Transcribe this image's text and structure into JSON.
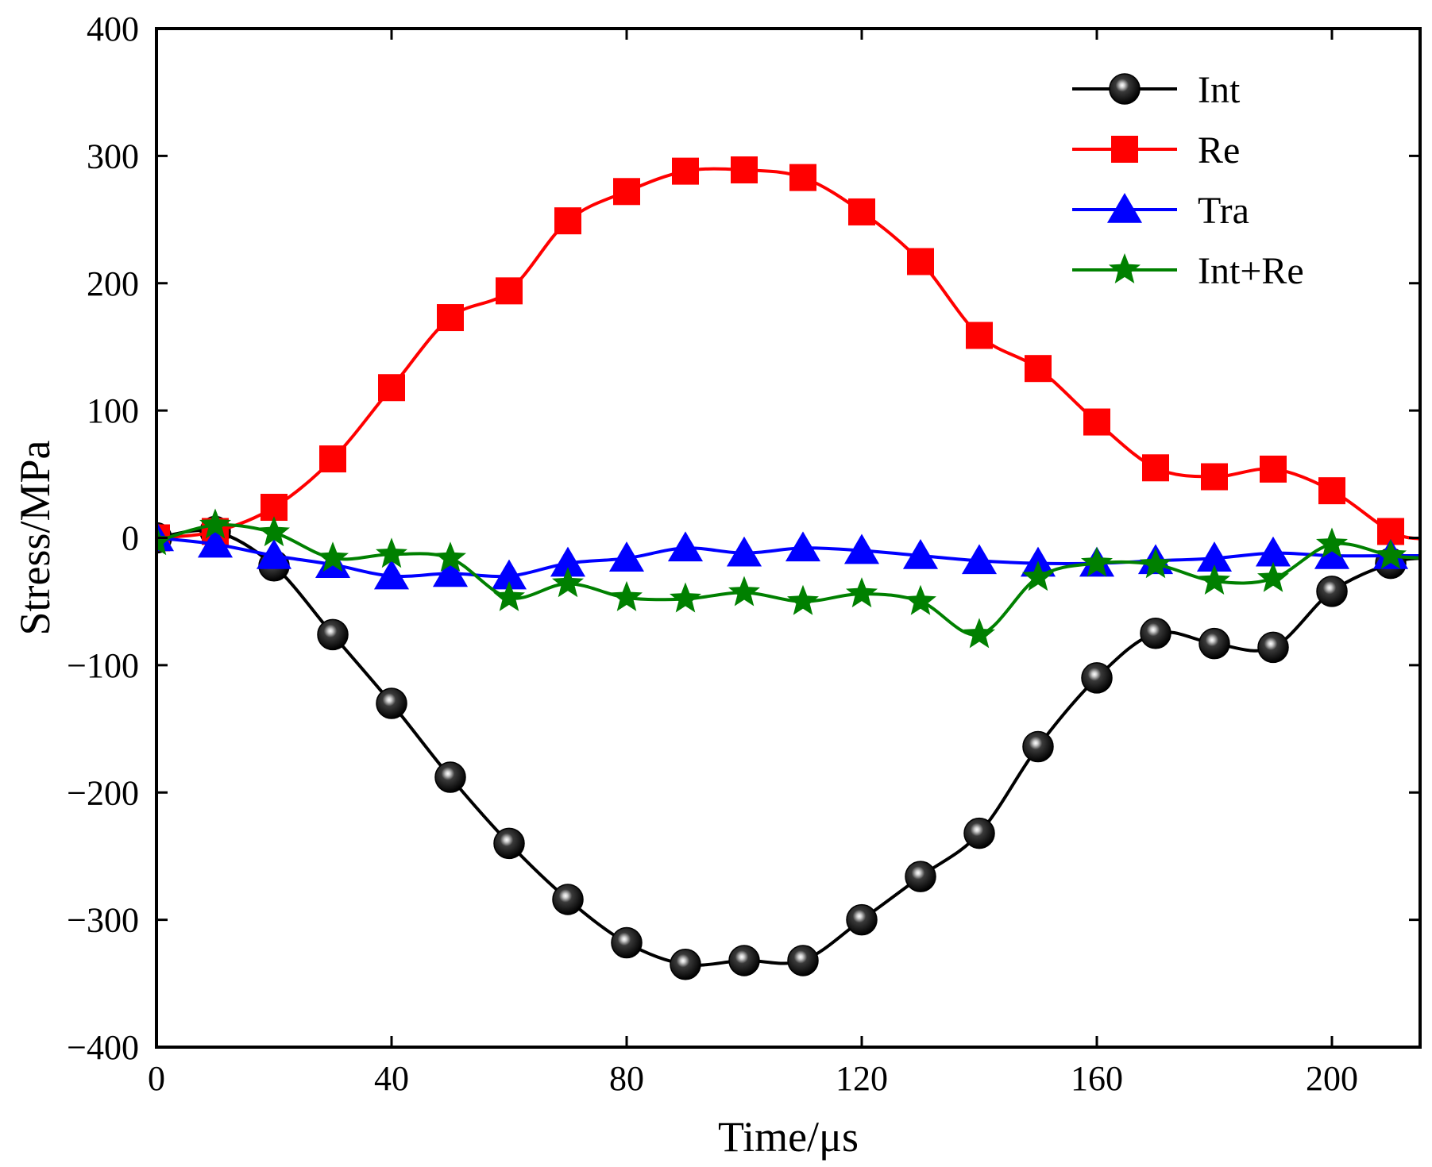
{
  "chart_data": {
    "type": "line",
    "title": "",
    "xlabel": "Time/μs",
    "ylabel": "Stress/MPa",
    "xlim": [
      0,
      215
    ],
    "ylim": [
      -400,
      400
    ],
    "xticks": [
      0,
      40,
      80,
      120,
      160,
      200
    ],
    "yticks": [
      -400,
      -300,
      -200,
      -100,
      0,
      100,
      200,
      300,
      400
    ],
    "xtick_labels": [
      "0",
      "40",
      "80",
      "120",
      "160",
      "200"
    ],
    "ytick_labels": [
      "−400",
      "−300",
      "−200",
      "−100",
      "0",
      "100",
      "200",
      "300",
      "400"
    ],
    "grid": false,
    "legend_position": "top-right",
    "series": [
      {
        "name": "Int",
        "color": "#000000",
        "marker": "sphere",
        "x": [
          0,
          10,
          20,
          30,
          40,
          50,
          60,
          70,
          80,
          90,
          100,
          110,
          120,
          130,
          140,
          150,
          160,
          170,
          180,
          190,
          200,
          210
        ],
        "y": [
          0,
          5,
          -22,
          -76,
          -130,
          -188,
          -240,
          -284,
          -318,
          -335,
          -332,
          -332,
          -300,
          -266,
          -232,
          -164,
          -110,
          -75,
          -83,
          -86,
          -42,
          -20
        ]
      },
      {
        "name": "Re",
        "color": "#ff0000",
        "marker": "square",
        "x": [
          0,
          10,
          20,
          30,
          40,
          50,
          60,
          70,
          80,
          90,
          100,
          110,
          120,
          130,
          140,
          150,
          160,
          170,
          180,
          190,
          200,
          210
        ],
        "y": [
          0,
          5,
          24,
          62,
          118,
          173,
          194,
          249,
          272,
          288,
          289,
          283,
          256,
          217,
          159,
          133,
          91,
          55,
          48,
          54,
          37,
          5
        ]
      },
      {
        "name": "Tra",
        "color": "#0000ff",
        "marker": "triangle",
        "x": [
          0,
          10,
          20,
          30,
          40,
          50,
          60,
          70,
          80,
          90,
          100,
          110,
          120,
          130,
          140,
          150,
          160,
          170,
          180,
          190,
          200,
          210
        ],
        "y": [
          0,
          -5,
          -14,
          -21,
          -30,
          -28,
          -30,
          -20,
          -16,
          -8,
          -12,
          -8,
          -10,
          -14,
          -18,
          -20,
          -20,
          -18,
          -16,
          -12,
          -14,
          -14
        ]
      },
      {
        "name": "Int+Re",
        "color": "#008000",
        "marker": "star",
        "x": [
          0,
          10,
          20,
          30,
          40,
          50,
          60,
          70,
          80,
          90,
          100,
          110,
          120,
          130,
          140,
          150,
          160,
          170,
          180,
          190,
          200,
          210
        ],
        "y": [
          -3,
          10,
          4,
          -16,
          -13,
          -16,
          -47,
          -36,
          -47,
          -48,
          -43,
          -50,
          -44,
          -50,
          -76,
          -31,
          -20,
          -21,
          -34,
          -32,
          -5,
          -14
        ]
      }
    ]
  }
}
